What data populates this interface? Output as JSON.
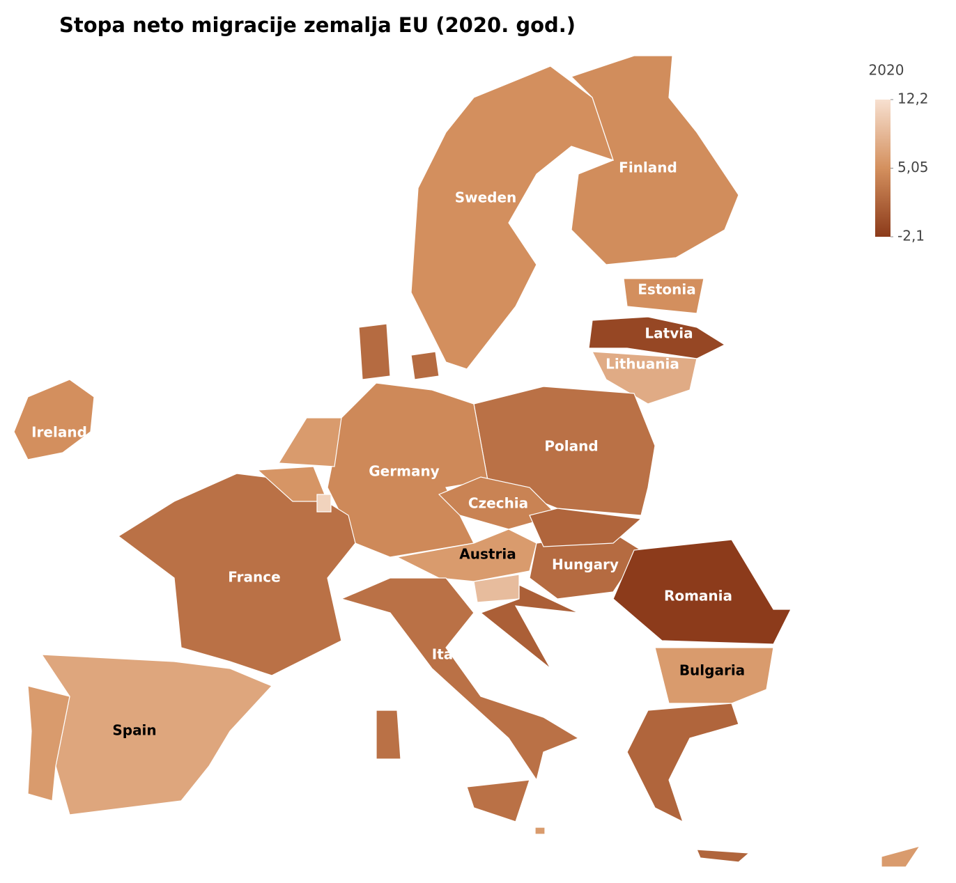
{
  "chart_data": {
    "type": "choropleth",
    "title": "Stopa neto migracije zemalja EU (2020. god.)",
    "legend_title": "2020",
    "scale": {
      "lim": [
        -2.1,
        12.2
      ],
      "colors": [
        "#8b3a1a",
        "#d4905e",
        "#f7e0d0"
      ]
    },
    "ticks": [
      {
        "value": 12.2,
        "label": "12,2"
      },
      {
        "value": 5.05,
        "label": "5,05"
      },
      {
        "value": -2.1,
        "label": "-2,1"
      }
    ],
    "regions": [
      {
        "label": "Finland",
        "value": 4.8,
        "label_color": "#ffffff"
      },
      {
        "label": "Sweden",
        "value": 5,
        "label_color": "#ffffff"
      },
      {
        "label": "Estonia",
        "value": 5,
        "label_color": "#ffffff"
      },
      {
        "label": "Latvia",
        "value": -1,
        "label_color": "#ffffff"
      },
      {
        "label": "Lithuania",
        "value": 7.5,
        "label_color": "#ffffff"
      },
      {
        "label": "Ireland",
        "value": 5,
        "label_color": "#ffffff"
      },
      {
        "label": "Poland",
        "value": 2.5,
        "label_color": "#ffffff"
      },
      {
        "label": "Germany",
        "value": 4.5,
        "label_color": "#ffffff"
      },
      {
        "label": "Czechia",
        "value": 4,
        "label_color": "#ffffff"
      },
      {
        "label": "Austria",
        "value": 6,
        "label_color": "#000000"
      },
      {
        "label": "Hungary",
        "value": 2,
        "label_color": "#ffffff"
      },
      {
        "label": "Romania",
        "value": -2,
        "label_color": "#ffffff"
      },
      {
        "label": "France",
        "value": 2.5,
        "label_color": "#ffffff"
      },
      {
        "label": "Italy",
        "value": 2.5,
        "label_color": "#ffffff"
      },
      {
        "label": "Bulgaria",
        "value": 6,
        "label_color": "#000000"
      },
      {
        "label": "Spain",
        "value": 7,
        "label_color": "#000000"
      },
      {
        "label": null,
        "value": 2
      },
      {
        "label": null,
        "value": 6
      },
      {
        "label": null,
        "value": 5.5
      },
      {
        "label": null,
        "value": 11
      },
      {
        "label": null,
        "value": 1.5
      },
      {
        "label": null,
        "value": 9
      },
      {
        "label": null,
        "value": 1
      },
      {
        "label": null,
        "value": 6
      },
      {
        "label": null,
        "value": 1.5
      },
      {
        "label": null,
        "value": 6
      },
      {
        "label": null,
        "value": 6
      }
    ]
  }
}
